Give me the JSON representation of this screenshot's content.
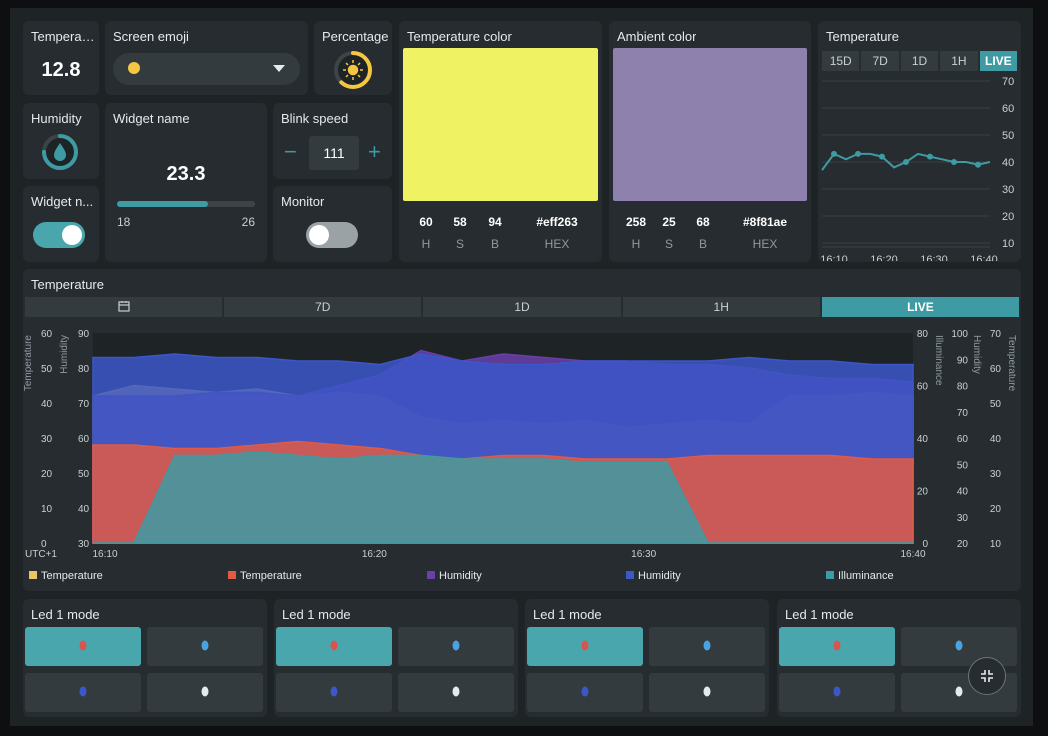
{
  "tiles": {
    "temperature": {
      "title": "Temperature",
      "value": "12.8"
    },
    "screen_emoji": {
      "title": "Screen emoji",
      "selected_icon": "sleeping-face-emoji"
    },
    "percentage": {
      "title": "Percentage",
      "icon": "sun-icon",
      "percent": 0.62
    },
    "humidity": {
      "title": "Humidity",
      "icon": "water-drop-icon",
      "percent": 0.75
    },
    "widget_name": {
      "title": "Widget name",
      "value": "23.3",
      "min": "18",
      "max": "26",
      "fill": 0.66
    },
    "blink_speed": {
      "title": "Blink speed",
      "value": "111",
      "minus": "−",
      "plus": "+"
    },
    "widget_toggle": {
      "title": "Widget n...",
      "state": "on"
    },
    "monitor": {
      "title": "Monitor",
      "state": "off"
    },
    "temperature_color": {
      "title": "Temperature color",
      "color": "#eff263",
      "h": "60",
      "s": "58",
      "b": "94",
      "hex": "#eff263",
      "lbl_h": "H",
      "lbl_s": "S",
      "lbl_b": "B",
      "lbl_hex": "HEX"
    },
    "ambient_color": {
      "title": "Ambient color",
      "color": "#8f81ae",
      "h": "258",
      "s": "25",
      "b": "68",
      "hex": "#8f81ae",
      "lbl_h": "H",
      "lbl_s": "S",
      "lbl_b": "B",
      "lbl_hex": "HEX"
    }
  },
  "small_chart": {
    "title": "Temperature",
    "ranges": [
      "15D",
      "7D",
      "1D",
      "1H",
      "LIVE"
    ],
    "active_range": "LIVE"
  },
  "big_chart": {
    "title": "Temperature",
    "ranges": [
      "calendar-icon",
      "7D",
      "1D",
      "1H",
      "LIVE"
    ],
    "active_range": "LIVE",
    "timezone": "UTC+1"
  },
  "led_groups": [
    {
      "title": "Led 1 mode"
    },
    {
      "title": "Led 1 mode"
    },
    {
      "title": "Led 1 mode"
    },
    {
      "title": "Led 1 mode"
    }
  ],
  "colors": {
    "accent": "#3e9aa3",
    "temp_yellow": "#e8c566",
    "temp_red": "#e05a45",
    "humidity_purple": "#6a3fa8",
    "humidity_blue": "#3b57c9",
    "illuminance_teal": "#3e9aa3"
  },
  "chart_data": [
    {
      "type": "line",
      "title": "Temperature",
      "x": [
        "16:10",
        "16:12",
        "16:14",
        "16:17",
        "16:20",
        "16:22",
        "16:25",
        "16:27",
        "16:30",
        "16:32",
        "16:34",
        "16:36",
        "16:38",
        "16:40",
        "16:42"
      ],
      "series": [
        {
          "values": [
            37,
            43,
            41,
            43,
            43,
            42,
            38,
            40,
            43,
            42,
            41,
            40,
            40,
            39,
            40
          ]
        }
      ],
      "xticks": [
        "16:10",
        "16:20",
        "16:30",
        "16:40"
      ],
      "yticks": [
        "10",
        "20",
        "30",
        "40",
        "50",
        "60",
        "70"
      ],
      "ylim": [
        10,
        70
      ],
      "grid": true
    },
    {
      "type": "area",
      "title": "Temperature",
      "xticks": [
        "16:10",
        "16:20",
        "16:30",
        "16:40"
      ],
      "x": [
        0,
        5,
        10,
        15,
        20,
        25,
        30,
        35,
        40,
        45,
        50,
        55,
        60,
        65,
        70,
        75,
        80,
        85,
        90,
        95,
        100
      ],
      "axes": [
        {
          "label": "Temperature",
          "side": "left",
          "ticks": [
            "0",
            "10",
            "20",
            "30",
            "40",
            "50",
            "60"
          ]
        },
        {
          "label": "Humidity",
          "side": "left",
          "ticks": [
            "30",
            "40",
            "50",
            "60",
            "70",
            "80",
            "90"
          ]
        },
        {
          "label": "Illuminance",
          "side": "right",
          "ticks": [
            "0",
            "20",
            "40",
            "60",
            "80"
          ]
        },
        {
          "label": "Humidity",
          "side": "right",
          "ticks": [
            "20",
            "30",
            "40",
            "50",
            "60",
            "70",
            "80",
            "90",
            "100"
          ]
        },
        {
          "label": "Temperature",
          "side": "right",
          "ticks": [
            "10",
            "20",
            "30",
            "40",
            "50",
            "60",
            "70"
          ]
        }
      ],
      "series": [
        {
          "name": "Temperature",
          "color": "#e8c566",
          "values": [
            42,
            45,
            44,
            43,
            44,
            42,
            43,
            42,
            36,
            34,
            35,
            34,
            35,
            33,
            34,
            35,
            34,
            42,
            42,
            43,
            42
          ]
        },
        {
          "name": "Temperature",
          "color": "#e05a45",
          "values": [
            28,
            28,
            27,
            27,
            28,
            29,
            28,
            27,
            25,
            24,
            25,
            25,
            24,
            24,
            24,
            25,
            25,
            25,
            25,
            24,
            24
          ]
        },
        {
          "name": "Humidity",
          "color": "#6a3fa8",
          "values": [
            42,
            42,
            42,
            43,
            43,
            42,
            45,
            48,
            55,
            52,
            54,
            53,
            52,
            52,
            51,
            51,
            50,
            48,
            47,
            47,
            46
          ]
        },
        {
          "name": "Humidity",
          "color": "#3b57c9",
          "values": [
            53,
            53,
            54,
            53,
            53,
            52,
            52,
            51,
            54,
            52,
            51,
            51,
            52,
            52,
            52,
            52,
            53,
            52,
            52,
            51,
            51
          ]
        },
        {
          "name": "Illuminance",
          "color": "#3e9aa3",
          "values": [
            0,
            0,
            25,
            25,
            26,
            25,
            24,
            25,
            25,
            24,
            24,
            24,
            23,
            23,
            23,
            0,
            0,
            0,
            0,
            0,
            0
          ]
        }
      ],
      "legend": "bottom"
    }
  ]
}
